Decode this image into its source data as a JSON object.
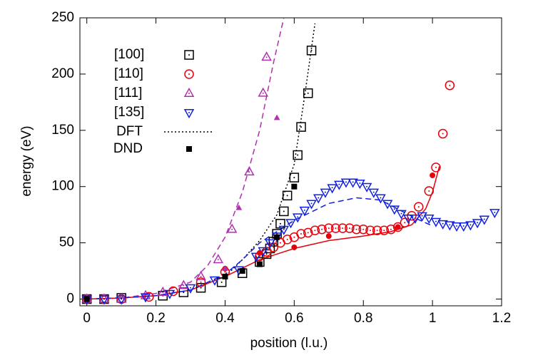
{
  "chart_data": {
    "type": "scatter",
    "xlabel": "position (l.u.)",
    "ylabel": "energy (eV)",
    "xlim": [
      -0.02,
      1.2
    ],
    "ylim": [
      -6,
      250
    ],
    "xticks": [
      0,
      0.2,
      0.4,
      0.6,
      0.8,
      1,
      1.2
    ],
    "yticks": [
      0,
      50,
      100,
      150,
      200,
      250
    ],
    "series": [
      {
        "name": "[100]",
        "color": "#000000",
        "marker": "square",
        "x": [
          0,
          0.05,
          0.1,
          0.22,
          0.28,
          0.33,
          0.39,
          0.45,
          0.5,
          0.52,
          0.53,
          0.54,
          0.55,
          0.56,
          0.57,
          0.58,
          0.6,
          0.61,
          0.62,
          0.64,
          0.65
        ],
        "values": [
          0,
          0,
          1,
          3,
          6,
          10,
          15,
          23,
          33,
          40,
          45,
          51,
          58,
          67,
          78,
          92,
          108,
          128,
          153,
          183,
          221
        ]
      },
      {
        "name": "[110]",
        "color": "#e8000b",
        "marker": "circle",
        "x": [
          0,
          0.05,
          0.1,
          0.18,
          0.25,
          0.33,
          0.4,
          0.5,
          0.52,
          0.54,
          0.56,
          0.58,
          0.6,
          0.62,
          0.64,
          0.66,
          0.68,
          0.7,
          0.72,
          0.74,
          0.76,
          0.78,
          0.8,
          0.82,
          0.84,
          0.86,
          0.88,
          0.9,
          0.92,
          0.94,
          0.96,
          0.99,
          1.01,
          1.03,
          1.05
        ],
        "values": [
          0,
          0,
          0,
          2,
          7,
          15,
          24,
          38,
          42,
          46,
          50,
          53,
          55,
          58,
          59,
          61,
          62,
          63,
          63,
          63,
          63,
          62,
          62,
          61,
          61,
          61,
          62,
          64,
          68,
          74,
          82,
          96,
          117,
          147,
          190
        ]
      },
      {
        "name": "[111]",
        "color": "#b030b0",
        "marker": "triangle-up",
        "x": [
          0,
          0.05,
          0.1,
          0.17,
          0.22,
          0.28,
          0.33,
          0.38,
          0.42,
          0.47,
          0.51,
          0.52
        ],
        "values": [
          0,
          0,
          0,
          3,
          6,
          12,
          20,
          35,
          62,
          113,
          183,
          215
        ]
      },
      {
        "name": "[135]",
        "color": "#1020e0",
        "marker": "triangle-down",
        "x": [
          0,
          0.05,
          0.1,
          0.17,
          0.24,
          0.3,
          0.37,
          0.44,
          0.49,
          0.51,
          0.53,
          0.55,
          0.57,
          0.59,
          0.61,
          0.63,
          0.65,
          0.67,
          0.69,
          0.71,
          0.73,
          0.75,
          0.77,
          0.79,
          0.81,
          0.83,
          0.85,
          0.87,
          0.89,
          0.91,
          0.93,
          0.95,
          0.97,
          0.99,
          1.01,
          1.03,
          1.05,
          1.07,
          1.09,
          1.11,
          1.13,
          1.15,
          1.18
        ],
        "values": [
          0,
          0,
          0,
          2,
          5,
          10,
          17,
          26,
          38,
          43,
          50,
          56,
          62,
          68,
          73,
          79,
          85,
          90,
          95,
          99,
          102,
          104,
          104,
          103,
          100,
          95,
          90,
          85,
          80,
          76,
          72,
          72,
          74,
          72,
          69,
          67,
          66,
          65,
          65,
          66,
          68,
          71,
          77
        ]
      }
    ],
    "dft": {
      "name": "DFT",
      "curves": [
        {
          "color": "#000000",
          "dash": "2,3",
          "x": [
            0,
            0.1,
            0.2,
            0.3,
            0.4,
            0.45,
            0.5,
            0.55,
            0.6,
            0.63,
            0.66
          ],
          "values": [
            0,
            1,
            3,
            8,
            20,
            35,
            52,
            75,
            120,
            180,
            245
          ]
        },
        {
          "color": "#e8000b",
          "dash": "",
          "x": [
            0,
            0.1,
            0.2,
            0.3,
            0.4,
            0.5,
            0.6,
            0.7,
            0.8,
            0.88,
            0.94,
            0.98,
            1.0,
            1.02
          ],
          "values": [
            0,
            1,
            3,
            8,
            20,
            35,
            45,
            52,
            56,
            60,
            66,
            80,
            95,
            118
          ]
        },
        {
          "color": "#b030b0",
          "dash": "8,5",
          "x": [
            0,
            0.1,
            0.2,
            0.3,
            0.35,
            0.4,
            0.45,
            0.5,
            0.54,
            0.57
          ],
          "values": [
            0,
            1,
            5,
            15,
            30,
            55,
            95,
            150,
            210,
            250
          ]
        },
        {
          "color": "#1020e0",
          "dash": "8,5",
          "x": [
            0,
            0.1,
            0.2,
            0.3,
            0.4,
            0.45,
            0.5,
            0.6,
            0.7,
            0.78,
            0.85,
            0.9,
            0.95,
            1.0
          ],
          "values": [
            0,
            1,
            3,
            8,
            22,
            35,
            50,
            70,
            85,
            90,
            88,
            80,
            72,
            65
          ]
        }
      ]
    },
    "dnd": {
      "name": "DND",
      "points": [
        {
          "color": "#000000",
          "marker": "square",
          "x": [
            0,
            0.4,
            0.45,
            0.5,
            0.55,
            0.6
          ],
          "values": [
            0,
            20,
            25,
            31,
            55,
            100
          ]
        },
        {
          "color": "#e8000b",
          "marker": "circle",
          "x": [
            0.4,
            0.5,
            0.6,
            0.7,
            0.9,
            1.0
          ],
          "values": [
            27,
            41,
            46,
            56,
            64,
            110
          ]
        },
        {
          "color": "#b030b0",
          "marker": "triangle-up",
          "x": [
            0.4,
            0.44,
            0.55
          ],
          "values": [
            27,
            81,
            161
          ]
        }
      ]
    }
  }
}
